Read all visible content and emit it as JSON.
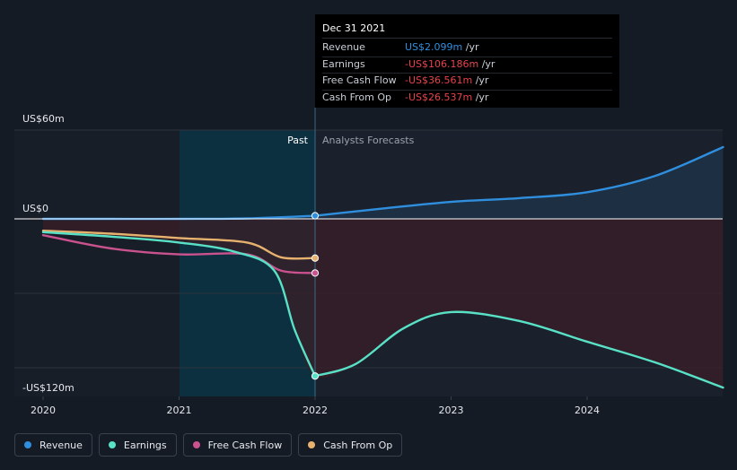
{
  "tooltip": {
    "date": "Dec 31 2021",
    "rows": [
      {
        "name": "Revenue",
        "value": "US$2.099m",
        "unit": "/yr",
        "color": "#2f8fde"
      },
      {
        "name": "Earnings",
        "value": "-US$106.186m",
        "unit": "/yr",
        "color": "#e8424b"
      },
      {
        "name": "Free Cash Flow",
        "value": "-US$36.561m",
        "unit": "/yr",
        "color": "#e8424b"
      },
      {
        "name": "Cash From Op",
        "value": "-US$26.537m",
        "unit": "/yr",
        "color": "#e8424b"
      }
    ]
  },
  "chart_data": {
    "type": "line",
    "y_top_label": "US$60m",
    "y_zero_label": "US$0",
    "y_bottom_label": "-US$120m",
    "ylim": [
      -120,
      60
    ],
    "x_ticks": [
      "2020",
      "2021",
      "2022",
      "2023",
      "2024"
    ],
    "x_tick_values": [
      2020,
      2021,
      2022,
      2023,
      2024
    ],
    "xlim": [
      2019.8,
      2025.0
    ],
    "past_label": "Past",
    "forecast_label": "Analysts Forecasts",
    "divider_x": 2022.0,
    "past_shade_start": 2021.0,
    "series": [
      {
        "name": "Revenue",
        "color": "#2f8fde",
        "x": [
          2020.0,
          2020.5,
          2021.0,
          2021.5,
          2022.0
        ],
        "y": [
          0.0,
          0.0,
          0.0,
          0.3,
          2.1
        ]
      },
      {
        "name": "Revenue",
        "color": "#2f8fde",
        "forecast": true,
        "x": [
          2022.0,
          2022.5,
          2023.0,
          2023.5,
          2024.0,
          2024.5,
          2025.0
        ],
        "y": [
          2.1,
          7.0,
          11.5,
          14.0,
          18.0,
          29.0,
          48.5
        ]
      },
      {
        "name": "Earnings",
        "color": "#58e1c6",
        "x": [
          2020.0,
          2020.5,
          2021.0,
          2021.4,
          2021.7,
          2021.85,
          2022.0
        ],
        "y": [
          -9.0,
          -12.0,
          -16.0,
          -22.0,
          -35.0,
          -75.0,
          -106.2
        ]
      },
      {
        "name": "Earnings",
        "color": "#58e1c6",
        "forecast": true,
        "x": [
          2022.0,
          2022.3,
          2022.65,
          2023.0,
          2023.5,
          2024.0,
          2024.5,
          2025.0
        ],
        "y": [
          -106.2,
          -98.0,
          -74.0,
          -63.0,
          -69.0,
          -83.0,
          -97.0,
          -114.0
        ]
      },
      {
        "name": "Free Cash Flow",
        "color": "#c9528f",
        "x": [
          2020.0,
          2020.5,
          2021.0,
          2021.5,
          2021.75,
          2022.0
        ],
        "y": [
          -11.0,
          -20.0,
          -24.0,
          -24.0,
          -35.0,
          -36.6
        ]
      },
      {
        "name": "Cash From Op",
        "color": "#e6b26e",
        "x": [
          2020.0,
          2020.5,
          2021.0,
          2021.5,
          2021.75,
          2022.0
        ],
        "y": [
          -8.0,
          -10.0,
          -13.0,
          -16.0,
          -26.0,
          -26.5
        ]
      }
    ]
  },
  "legend": [
    {
      "label": "Revenue",
      "color": "#2f8fde"
    },
    {
      "label": "Earnings",
      "color": "#58e1c6"
    },
    {
      "label": "Free Cash Flow",
      "color": "#c9528f"
    },
    {
      "label": "Cash From Op",
      "color": "#e6b26e"
    }
  ]
}
